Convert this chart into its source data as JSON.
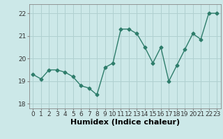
{
  "x": [
    0,
    1,
    2,
    3,
    4,
    5,
    6,
    7,
    8,
    9,
    10,
    11,
    12,
    13,
    14,
    15,
    16,
    17,
    18,
    19,
    20,
    21,
    22,
    23
  ],
  "y": [
    19.3,
    19.1,
    19.5,
    19.5,
    19.4,
    19.2,
    18.8,
    18.7,
    18.4,
    19.6,
    19.8,
    21.3,
    21.3,
    21.1,
    20.5,
    19.8,
    20.5,
    19.0,
    19.7,
    20.4,
    21.1,
    20.85,
    22.0,
    22.0
  ],
  "line_color": "#2e7d6b",
  "marker": "D",
  "markersize": 2.5,
  "linewidth": 1.0,
  "background_color": "#cce8e8",
  "grid_color": "#b0d0d0",
  "xlabel": "Humidex (Indice chaleur)",
  "xlabel_fontsize": 8,
  "ylim": [
    17.8,
    22.4
  ],
  "yticks": [
    18,
    19,
    20,
    21,
    22
  ],
  "xticks": [
    0,
    1,
    2,
    3,
    4,
    5,
    6,
    7,
    8,
    9,
    10,
    11,
    12,
    13,
    14,
    15,
    16,
    17,
    18,
    19,
    20,
    21,
    22,
    23
  ],
  "tick_fontsize": 6.5,
  "spine_color": "#888888"
}
